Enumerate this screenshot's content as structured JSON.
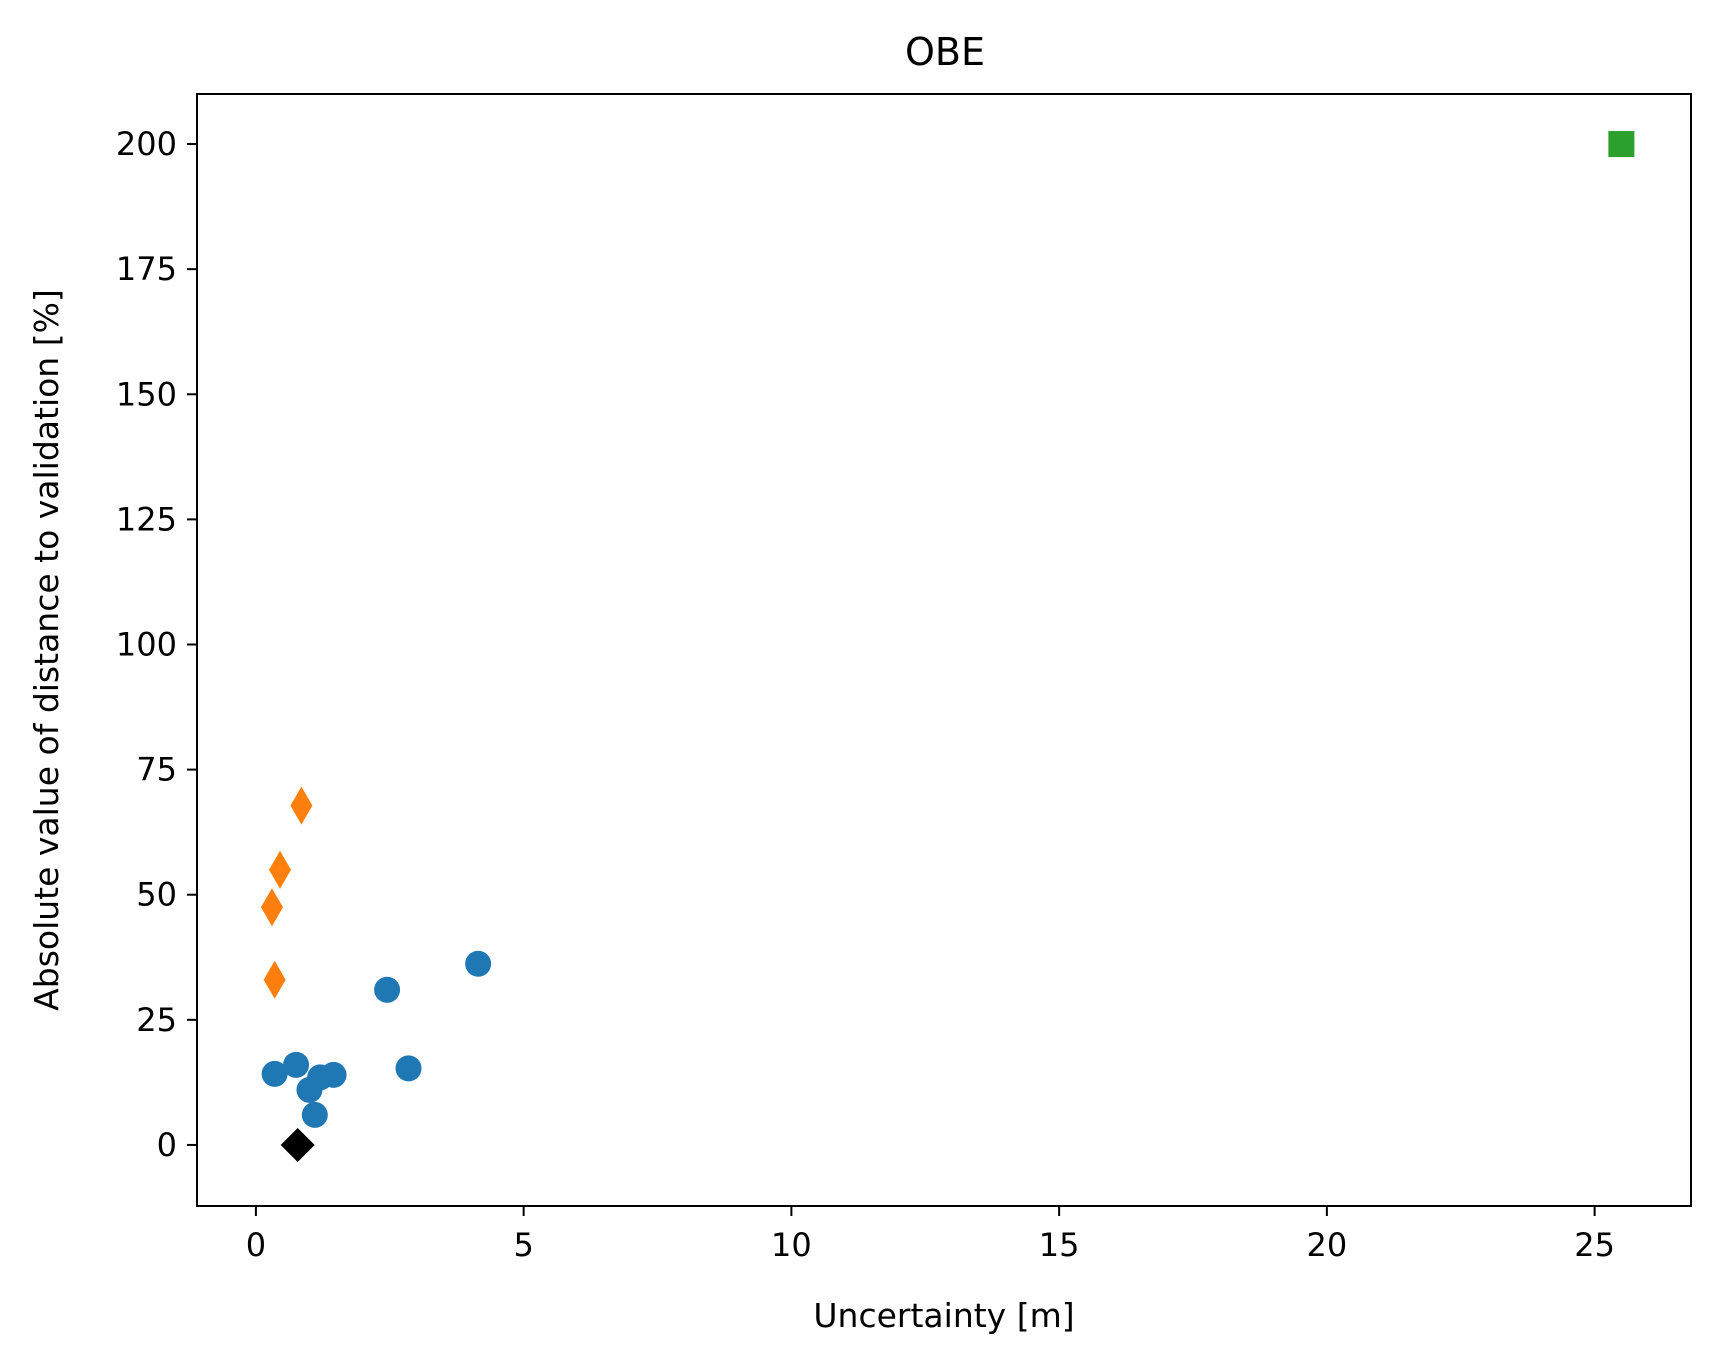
{
  "chart_data": {
    "type": "scatter",
    "title": "OBE",
    "xlabel": "Uncertainty [m]",
    "ylabel": "Absolute value of distance to validation [%]",
    "xlim": [
      -1.1,
      26.8
    ],
    "ylim": [
      -12.2,
      210
    ],
    "xticks": [
      0,
      5,
      10,
      15,
      20,
      25
    ],
    "yticks": [
      0,
      25,
      50,
      75,
      100,
      125,
      150,
      175,
      200
    ],
    "grid": false,
    "legend": "none",
    "series": [
      {
        "marker": "circle",
        "color": "#1f77b4",
        "points": [
          {
            "x": 0.35,
            "y": 14.2
          },
          {
            "x": 0.75,
            "y": 16.0
          },
          {
            "x": 1.0,
            "y": 11.0
          },
          {
            "x": 1.1,
            "y": 6.0
          },
          {
            "x": 1.2,
            "y": 13.5
          },
          {
            "x": 1.45,
            "y": 14.0
          },
          {
            "x": 2.45,
            "y": 31.0
          },
          {
            "x": 2.85,
            "y": 15.3
          },
          {
            "x": 4.15,
            "y": 36.2
          }
        ]
      },
      {
        "marker": "thin_diamond",
        "color": "#ff7f0e",
        "points": [
          {
            "x": 0.3,
            "y": 47.5
          },
          {
            "x": 0.35,
            "y": 33.0
          },
          {
            "x": 0.45,
            "y": 55.0
          },
          {
            "x": 0.85,
            "y": 67.8
          }
        ]
      },
      {
        "marker": "square",
        "color": "#2ca02c",
        "points": [
          {
            "x": 25.5,
            "y": 200.0
          }
        ]
      },
      {
        "marker": "diamond",
        "color": "#000000",
        "points": [
          {
            "x": 0.78,
            "y": 0.0
          }
        ]
      }
    ]
  }
}
